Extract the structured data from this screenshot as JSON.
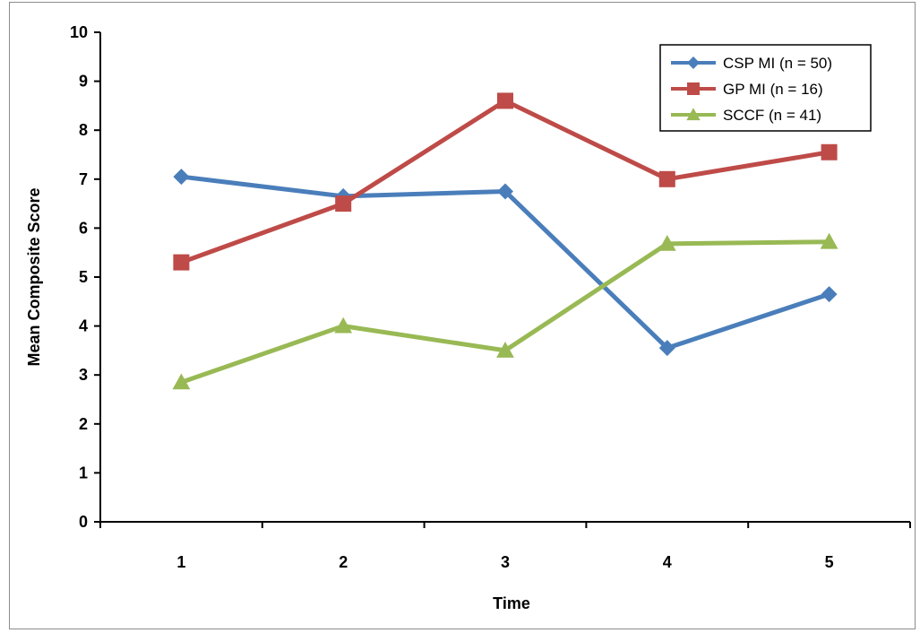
{
  "chart_data": {
    "type": "line",
    "title": "",
    "xlabel": "Time",
    "ylabel": "Mean Composite Score",
    "x": [
      1,
      2,
      3,
      4,
      5
    ],
    "xticks": [
      "1",
      "2",
      "3",
      "4",
      "5"
    ],
    "ylim": [
      0,
      10
    ],
    "yticks": [
      "0",
      "1",
      "2",
      "3",
      "4",
      "5",
      "6",
      "7",
      "8",
      "9",
      "10"
    ],
    "grid": false,
    "legend_position": "top-right",
    "series": [
      {
        "name": "CSP MI (n = 50)",
        "color": "#4a7ebb",
        "marker": "diamond",
        "values": [
          7.05,
          6.65,
          6.75,
          3.55,
          4.65
        ]
      },
      {
        "name": "GP MI (n = 16)",
        "color": "#be4b48",
        "marker": "square",
        "values": [
          5.3,
          6.5,
          8.6,
          7.0,
          7.55
        ]
      },
      {
        "name": "SCCF (n = 41)",
        "color": "#98b954",
        "marker": "triangle",
        "values": [
          2.85,
          4.0,
          3.5,
          5.68,
          5.72
        ]
      }
    ]
  }
}
